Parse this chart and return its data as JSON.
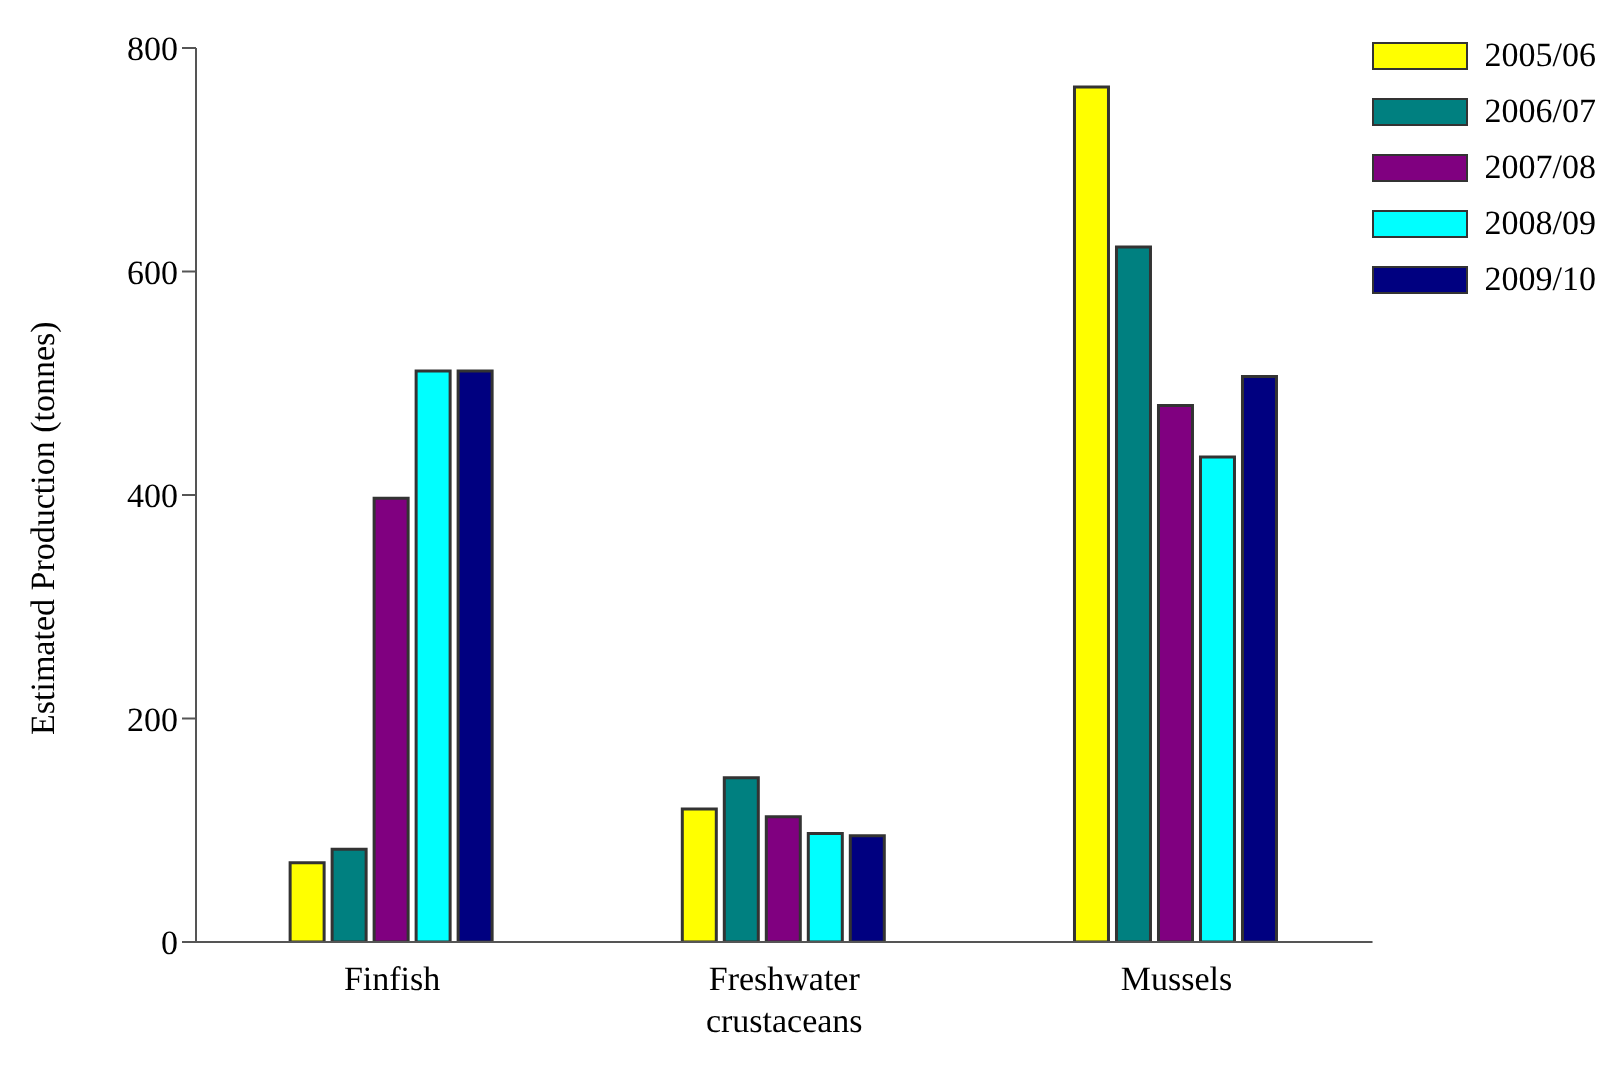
{
  "chart_data": {
    "type": "bar",
    "ylabel": "Estimated Production (tonnes)",
    "categories": [
      "Finfish",
      "Freshwater crustaceans",
      "Mussels"
    ],
    "series": [
      {
        "name": "2005/06",
        "color": "#ffff00",
        "values": [
          71,
          119,
          765
        ]
      },
      {
        "name": "2006/07",
        "color": "#008080",
        "values": [
          83,
          147,
          622
        ]
      },
      {
        "name": "2007/08",
        "color": "#800080",
        "values": [
          397,
          112,
          480
        ]
      },
      {
        "name": "2008/09",
        "color": "#00ffff",
        "values": [
          511,
          97,
          434
        ]
      },
      {
        "name": "2009/10",
        "color": "#000080",
        "values": [
          511,
          95,
          506
        ]
      }
    ],
    "ylim": [
      0,
      800
    ],
    "yticks": [
      0,
      200,
      400,
      600,
      800
    ],
    "grid": false,
    "legend": "top right"
  }
}
